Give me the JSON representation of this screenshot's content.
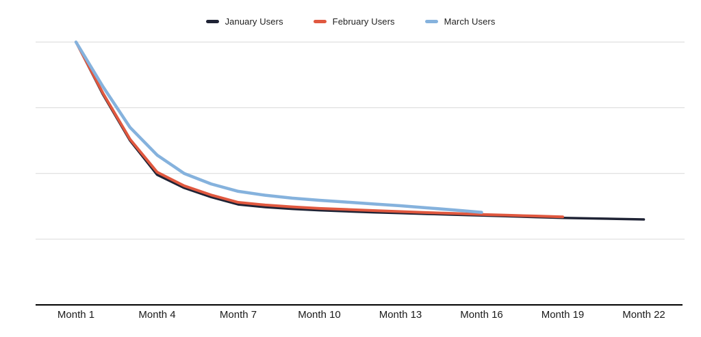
{
  "chart_data": {
    "type": "line",
    "title": "",
    "xlabel": "",
    "ylabel": "",
    "x": [
      1,
      2,
      3,
      4,
      5,
      6,
      7,
      8,
      9,
      10,
      11,
      12,
      13,
      14,
      15,
      16,
      17,
      18,
      19,
      20,
      21,
      22
    ],
    "x_tick_months": [
      1,
      4,
      7,
      10,
      13,
      16,
      19,
      22
    ],
    "x_tick_labels": [
      "Month 1",
      "Month 4",
      "Month 7",
      "Month 10",
      "Month 13",
      "Month 16",
      "Month 19",
      "Month 22"
    ],
    "ylim": [
      0,
      100
    ],
    "gridline_values": [
      100,
      75,
      50,
      25
    ],
    "grid": "horizontal-only",
    "legend_position": "top-center",
    "axis_color": "#000000",
    "gridline_color": "#d9d9d9",
    "tick_label_color": "#1a1a1a",
    "series": [
      {
        "name": "January Users",
        "color": "#1f2335",
        "stroke_width": 3.5,
        "start_month": 1,
        "values": [
          100,
          80,
          62.5,
          49.5,
          44.5,
          41,
          38.2,
          37.2,
          36.5,
          36.0,
          35.6,
          35.2,
          34.9,
          34.6,
          34.3,
          34.0,
          33.7,
          33.4,
          33.1,
          32.9,
          32.7,
          32.5
        ]
      },
      {
        "name": "February Users",
        "color": "#e0583f",
        "stroke_width": 4,
        "start_month": 1,
        "values": [
          100,
          80.5,
          63,
          50.5,
          45.3,
          41.8,
          39,
          38,
          37.3,
          36.7,
          36.3,
          35.9,
          35.5,
          35.1,
          34.8,
          34.4,
          34.1,
          33.8,
          33.5
        ]
      },
      {
        "name": "March Users",
        "color": "#85b2dd",
        "stroke_width": 4.5,
        "start_month": 1,
        "values": [
          100,
          83,
          67.5,
          57,
          50,
          46,
          43.2,
          41.7,
          40.6,
          39.8,
          39.1,
          38.4,
          37.7,
          36.9,
          36.1,
          35.2
        ]
      }
    ]
  }
}
